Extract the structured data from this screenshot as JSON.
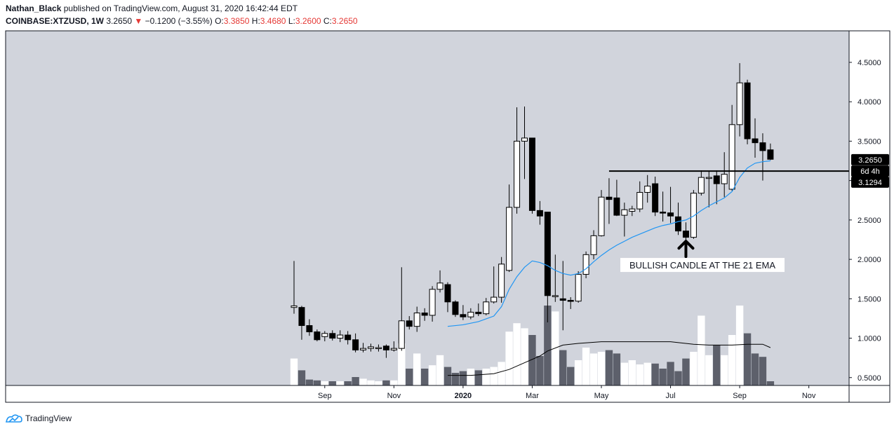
{
  "header": {
    "author": "Nathan_Black",
    "published_text": "published on TradingView.com, August 31, 2020 16:42:44 EDT",
    "symbol": "COINBASE:XTZUSD, 1W",
    "last": "3.2650",
    "change_arrow": "▼",
    "change": "−0.1200 (−3.55%)",
    "open_label": "O:",
    "open": "3.3850",
    "high_label": "H:",
    "high": "3.4680",
    "low_label": "L:",
    "low": "3.2600",
    "close_label": "C:",
    "close": "3.2650"
  },
  "footer": {
    "brand": "TradingView"
  },
  "colors": {
    "background": "#d1d4dc",
    "up_body": "#ffffff",
    "down_body": "#000000",
    "ema": "#2196f3",
    "volume_sma": "#000000",
    "volume_up": "#ffffff",
    "volume_down": "#5d606b",
    "negative": "#e53935"
  },
  "chart_data": {
    "type": "candlestick",
    "timeframe": "1W",
    "ylim": [
      0.4,
      4.9
    ],
    "y_ticks": [
      "0.5000",
      "1.0000",
      "1.5000",
      "2.0000",
      "2.5000",
      "3.0000",
      "3.5000",
      "4.0000",
      "4.5000"
    ],
    "x_ticks": [
      {
        "label": "Sep",
        "week": 4
      },
      {
        "label": "Nov",
        "week": 13
      },
      {
        "label": "2020",
        "week": 22
      },
      {
        "label": "Mar",
        "week": 31
      },
      {
        "label": "May",
        "week": 40
      },
      {
        "label": "Jul",
        "week": 49
      },
      {
        "label": "Sep",
        "week": 58
      },
      {
        "label": "Nov",
        "week": 67
      }
    ],
    "candles": [
      {
        "o": 1.39,
        "h": 1.98,
        "l": 1.31,
        "c": 1.41,
        "v": 0.32
      },
      {
        "o": 1.39,
        "h": 1.41,
        "l": 0.98,
        "c": 1.16,
        "v": 0.18
      },
      {
        "o": 1.16,
        "h": 1.24,
        "l": 1.03,
        "c": 1.08,
        "v": 0.07
      },
      {
        "o": 1.08,
        "h": 1.11,
        "l": 0.96,
        "c": 0.98,
        "v": 0.06
      },
      {
        "o": 1.02,
        "h": 1.09,
        "l": 0.96,
        "c": 1.06,
        "v": 0.05
      },
      {
        "o": 1.06,
        "h": 1.1,
        "l": 0.97,
        "c": 1.0,
        "v": 0.05
      },
      {
        "o": 1.0,
        "h": 1.1,
        "l": 0.95,
        "c": 1.04,
        "v": 0.05
      },
      {
        "o": 1.04,
        "h": 1.09,
        "l": 0.92,
        "c": 0.98,
        "v": 0.05
      },
      {
        "o": 0.98,
        "h": 1.06,
        "l": 0.82,
        "c": 0.85,
        "v": 0.1
      },
      {
        "o": 0.85,
        "h": 0.94,
        "l": 0.82,
        "c": 0.87,
        "v": 0.08
      },
      {
        "o": 0.87,
        "h": 0.93,
        "l": 0.83,
        "c": 0.89,
        "v": 0.06
      },
      {
        "o": 0.87,
        "h": 0.92,
        "l": 0.83,
        "c": 0.88,
        "v": 0.05
      },
      {
        "o": 0.9,
        "h": 0.92,
        "l": 0.75,
        "c": 0.85,
        "v": 0.06
      },
      {
        "o": 0.85,
        "h": 0.96,
        "l": 0.83,
        "c": 0.87,
        "v": 0.06
      },
      {
        "o": 0.87,
        "h": 1.9,
        "l": 0.84,
        "c": 1.22,
        "v": 0.5
      },
      {
        "o": 1.22,
        "h": 1.28,
        "l": 1.11,
        "c": 1.15,
        "v": 0.2
      },
      {
        "o": 1.15,
        "h": 1.4,
        "l": 1.08,
        "c": 1.32,
        "v": 0.38
      },
      {
        "o": 1.32,
        "h": 1.38,
        "l": 1.22,
        "c": 1.29,
        "v": 0.2
      },
      {
        "o": 1.29,
        "h": 1.66,
        "l": 1.21,
        "c": 1.62,
        "v": 0.24
      },
      {
        "o": 1.62,
        "h": 1.86,
        "l": 1.58,
        "c": 1.7,
        "v": 0.36
      },
      {
        "o": 1.68,
        "h": 1.71,
        "l": 1.33,
        "c": 1.46,
        "v": 0.22
      },
      {
        "o": 1.46,
        "h": 1.48,
        "l": 1.27,
        "c": 1.3,
        "v": 0.15
      },
      {
        "o": 1.3,
        "h": 1.42,
        "l": 1.23,
        "c": 1.27,
        "v": 0.17
      },
      {
        "o": 1.27,
        "h": 1.38,
        "l": 1.24,
        "c": 1.33,
        "v": 0.2
      },
      {
        "o": 1.33,
        "h": 1.44,
        "l": 1.28,
        "c": 1.31,
        "v": 0.18
      },
      {
        "o": 1.31,
        "h": 1.51,
        "l": 1.29,
        "c": 1.46,
        "v": 0.2
      },
      {
        "o": 1.46,
        "h": 1.91,
        "l": 1.44,
        "c": 1.52,
        "v": 0.22
      },
      {
        "o": 1.52,
        "h": 2.03,
        "l": 1.45,
        "c": 1.94,
        "v": 0.28
      },
      {
        "o": 1.86,
        "h": 2.95,
        "l": 1.84,
        "c": 2.66,
        "v": 0.64
      },
      {
        "o": 2.66,
        "h": 3.93,
        "l": 2.58,
        "c": 3.5,
        "v": 0.74
      },
      {
        "o": 3.5,
        "h": 3.94,
        "l": 3.02,
        "c": 3.54,
        "v": 0.68
      },
      {
        "o": 3.54,
        "h": 3.54,
        "l": 2.58,
        "c": 2.62,
        "v": 0.6
      },
      {
        "o": 2.62,
        "h": 2.74,
        "l": 2.44,
        "c": 2.55,
        "v": 0.35
      },
      {
        "o": 2.6,
        "h": 2.6,
        "l": 1.2,
        "c": 1.54,
        "v": 0.95
      },
      {
        "o": 1.54,
        "h": 2.06,
        "l": 1.46,
        "c": 1.54,
        "v": 0.88
      },
      {
        "o": 1.5,
        "h": 1.98,
        "l": 1.1,
        "c": 1.48,
        "v": 0.42
      },
      {
        "o": 1.48,
        "h": 1.52,
        "l": 1.37,
        "c": 1.47,
        "v": 0.22
      },
      {
        "o": 1.47,
        "h": 1.85,
        "l": 1.45,
        "c": 1.81,
        "v": 0.3
      },
      {
        "o": 1.81,
        "h": 2.1,
        "l": 1.76,
        "c": 2.06,
        "v": 0.45
      },
      {
        "o": 2.06,
        "h": 2.37,
        "l": 2.0,
        "c": 2.3,
        "v": 0.38
      },
      {
        "o": 2.3,
        "h": 2.88,
        "l": 2.29,
        "c": 2.79,
        "v": 0.4
      },
      {
        "o": 2.79,
        "h": 3.03,
        "l": 2.45,
        "c": 2.76,
        "v": 0.42
      },
      {
        "o": 2.78,
        "h": 3.01,
        "l": 2.55,
        "c": 2.56,
        "v": 0.38
      },
      {
        "o": 2.56,
        "h": 2.72,
        "l": 2.29,
        "c": 2.63,
        "v": 0.27
      },
      {
        "o": 2.61,
        "h": 2.68,
        "l": 2.55,
        "c": 2.64,
        "v": 0.3
      },
      {
        "o": 2.64,
        "h": 2.99,
        "l": 2.6,
        "c": 2.85,
        "v": 0.25
      },
      {
        "o": 2.85,
        "h": 3.07,
        "l": 2.72,
        "c": 2.93,
        "v": 0.27
      },
      {
        "o": 2.96,
        "h": 3.05,
        "l": 2.55,
        "c": 2.6,
        "v": 0.26
      },
      {
        "o": 2.6,
        "h": 2.86,
        "l": 2.48,
        "c": 2.59,
        "v": 0.2
      },
      {
        "o": 2.59,
        "h": 2.92,
        "l": 2.46,
        "c": 2.55,
        "v": 0.28
      },
      {
        "o": 2.54,
        "h": 2.72,
        "l": 2.31,
        "c": 2.36,
        "v": 0.17
      },
      {
        "o": 2.36,
        "h": 2.47,
        "l": 2.24,
        "c": 2.28,
        "v": 0.32
      },
      {
        "o": 2.28,
        "h": 2.88,
        "l": 2.26,
        "c": 2.84,
        "v": 0.4
      },
      {
        "o": 2.84,
        "h": 3.13,
        "l": 2.81,
        "c": 3.04,
        "v": 0.83
      },
      {
        "o": 3.04,
        "h": 3.12,
        "l": 2.66,
        "c": 3.04,
        "v": 0.36
      },
      {
        "o": 3.06,
        "h": 3.13,
        "l": 2.7,
        "c": 2.96,
        "v": 0.48
      },
      {
        "o": 2.96,
        "h": 3.36,
        "l": 2.79,
        "c": 3.08,
        "v": 0.36
      },
      {
        "o": 2.89,
        "h": 3.96,
        "l": 2.87,
        "c": 3.71,
        "v": 0.6
      },
      {
        "o": 3.71,
        "h": 4.49,
        "l": 3.56,
        "c": 4.24,
        "v": 0.95
      },
      {
        "o": 4.24,
        "h": 4.28,
        "l": 3.46,
        "c": 3.53,
        "v": 0.62
      },
      {
        "o": 3.53,
        "h": 3.79,
        "l": 3.29,
        "c": 3.48,
        "v": 0.38
      },
      {
        "o": 3.48,
        "h": 3.6,
        "l": 3.0,
        "c": 3.38,
        "v": 0.34
      },
      {
        "o": 3.39,
        "h": 3.47,
        "l": 3.26,
        "c": 3.27,
        "v": 0.05
      }
    ],
    "ema_21": [
      {
        "i": 20,
        "y": 1.15
      },
      {
        "i": 22,
        "y": 1.17
      },
      {
        "i": 24,
        "y": 1.21
      },
      {
        "i": 26,
        "y": 1.28
      },
      {
        "i": 27,
        "y": 1.4
      },
      {
        "i": 28,
        "y": 1.62
      },
      {
        "i": 29,
        "y": 1.78
      },
      {
        "i": 30,
        "y": 1.9
      },
      {
        "i": 31,
        "y": 1.98
      },
      {
        "i": 32,
        "y": 1.96
      },
      {
        "i": 33,
        "y": 1.92
      },
      {
        "i": 34,
        "y": 1.86
      },
      {
        "i": 35,
        "y": 1.82
      },
      {
        "i": 36,
        "y": 1.8
      },
      {
        "i": 37,
        "y": 1.82
      },
      {
        "i": 38,
        "y": 1.88
      },
      {
        "i": 39,
        "y": 1.97
      },
      {
        "i": 40,
        "y": 2.05
      },
      {
        "i": 41,
        "y": 2.12
      },
      {
        "i": 42,
        "y": 2.18
      },
      {
        "i": 43,
        "y": 2.23
      },
      {
        "i": 44,
        "y": 2.28
      },
      {
        "i": 45,
        "y": 2.32
      },
      {
        "i": 46,
        "y": 2.36
      },
      {
        "i": 47,
        "y": 2.4
      },
      {
        "i": 48,
        "y": 2.43
      },
      {
        "i": 49,
        "y": 2.45
      },
      {
        "i": 50,
        "y": 2.48
      },
      {
        "i": 51,
        "y": 2.5
      },
      {
        "i": 52,
        "y": 2.55
      },
      {
        "i": 53,
        "y": 2.62
      },
      {
        "i": 54,
        "y": 2.68
      },
      {
        "i": 55,
        "y": 2.73
      },
      {
        "i": 56,
        "y": 2.78
      },
      {
        "i": 57,
        "y": 2.86
      },
      {
        "i": 58,
        "y": 3.04
      },
      {
        "i": 59,
        "y": 3.16
      },
      {
        "i": 60,
        "y": 3.22
      },
      {
        "i": 61,
        "y": 3.24
      },
      {
        "i": 62,
        "y": 3.25
      }
    ],
    "volume_sma": [
      {
        "i": 20,
        "y": 0.12
      },
      {
        "i": 23,
        "y": 0.12
      },
      {
        "i": 26,
        "y": 0.14
      },
      {
        "i": 28,
        "y": 0.19
      },
      {
        "i": 30,
        "y": 0.27
      },
      {
        "i": 32,
        "y": 0.35
      },
      {
        "i": 33,
        "y": 0.41
      },
      {
        "i": 35,
        "y": 0.48
      },
      {
        "i": 37,
        "y": 0.5
      },
      {
        "i": 40,
        "y": 0.52
      },
      {
        "i": 43,
        "y": 0.52
      },
      {
        "i": 46,
        "y": 0.52
      },
      {
        "i": 49,
        "y": 0.52
      },
      {
        "i": 52,
        "y": 0.49
      },
      {
        "i": 54,
        "y": 0.48
      },
      {
        "i": 57,
        "y": 0.48
      },
      {
        "i": 59,
        "y": 0.49
      },
      {
        "i": 61,
        "y": 0.49
      },
      {
        "i": 62,
        "y": 0.45
      }
    ],
    "volume_max": 1.0,
    "resistance_line": {
      "price": 3.12,
      "from_week": 41
    },
    "price_labels": [
      {
        "text": "3.2650",
        "price": 3.265
      },
      {
        "text": "6d 4h",
        "price": 3.12
      },
      {
        "text": "3.1294",
        "price": 2.98
      }
    ],
    "annotation": {
      "text": "BULLISH CANDLE AT THE 21 EMA",
      "arrow_week": 51,
      "arrow_price": 2.23,
      "label_price": 1.92
    }
  }
}
